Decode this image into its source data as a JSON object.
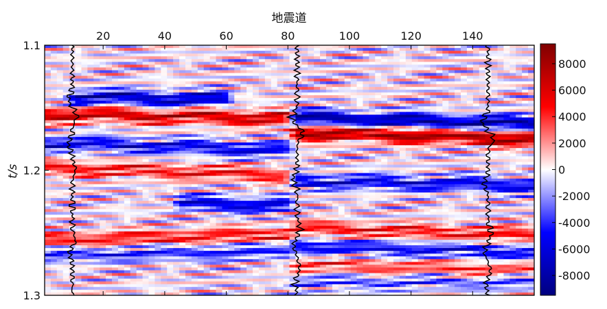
{
  "chart_data": {
    "type": "heatmap",
    "title": "",
    "xlabel": "地震道",
    "ylabel": "t/s",
    "x_axis_position": "top",
    "xlim": [
      1,
      160
    ],
    "ylim": [
      1.1,
      1.3
    ],
    "y_reversed": true,
    "x_ticks": [
      20,
      40,
      60,
      80,
      100,
      120,
      140
    ],
    "x_tick_labels": [
      "20",
      "40",
      "60",
      "80",
      "100",
      "120",
      "140"
    ],
    "y_ticks": [
      1.1,
      1.2,
      1.3
    ],
    "y_tick_labels": [
      "1.1",
      "1.2",
      "1.3"
    ],
    "colorbar": {
      "position": "right",
      "range": [
        -9500,
        9500
      ],
      "ticks": [
        8000,
        6000,
        4000,
        2000,
        0,
        -2000,
        -4000,
        -6000,
        -8000
      ],
      "tick_labels": [
        "8000",
        "6000",
        "4000",
        "2000",
        "0",
        "-2000",
        "-4000",
        "-6000",
        "-8000"
      ],
      "colormap": [
        "#00007f",
        "#0000ff",
        "#ffffff",
        "#ff0000",
        "#7f0000"
      ]
    },
    "events": [
      {
        "name": "red-a",
        "t_left": 1.155,
        "t_right": 1.162,
        "amplitude": 6500,
        "x_start": 1,
        "x_end": 80
      },
      {
        "name": "blue-a",
        "t_left": 1.141,
        "t_right": 1.148,
        "amplitude": -7000,
        "x_start": 10,
        "x_end": 60
      },
      {
        "name": "blue-b",
        "t_left": 1.178,
        "t_right": 1.19,
        "amplitude": -5500,
        "x_start": 1,
        "x_end": 80
      },
      {
        "name": "red-b",
        "t_left": 1.198,
        "t_right": 1.21,
        "amplitude": 4500,
        "x_start": 1,
        "x_end": 80
      },
      {
        "name": "blue-c",
        "t_left": 1.225,
        "t_right": 1.231,
        "amplitude": -6000,
        "x_start": 45,
        "x_end": 80
      },
      {
        "name": "red-c",
        "t_left": 1.256,
        "t_right": 1.246,
        "amplitude": 4500,
        "x_start": 1,
        "x_end": 80
      },
      {
        "name": "blue-d",
        "t_left": 1.268,
        "t_right": 1.262,
        "amplitude": -4000,
        "x_start": 1,
        "x_end": 80
      },
      {
        "name": "blue-main",
        "t_left": 1.153,
        "t_right": 1.163,
        "amplitude": -8000,
        "x_start": 82,
        "x_end": 160
      },
      {
        "name": "red-main",
        "t_left": 1.164,
        "t_right": 1.175,
        "amplitude": 8000,
        "x_start": 82,
        "x_end": 160
      },
      {
        "name": "blue-mid",
        "t_left": 1.205,
        "t_right": 1.212,
        "amplitude": -5500,
        "x_start": 82,
        "x_end": 160
      },
      {
        "name": "red-low",
        "t_left": 1.24,
        "t_right": 1.252,
        "amplitude": 4500,
        "x_start": 82,
        "x_end": 160
      },
      {
        "name": "blue-low",
        "t_left": 1.255,
        "t_right": 1.266,
        "amplitude": -5000,
        "x_start": 82,
        "x_end": 160
      },
      {
        "name": "red-deep",
        "t_left": 1.272,
        "t_right": 1.28,
        "amplitude": 3500,
        "x_start": 82,
        "x_end": 160
      },
      {
        "name": "blue-deep",
        "t_left": 1.288,
        "t_right": 1.29,
        "amplitude": -3000,
        "x_start": 82,
        "x_end": 160
      }
    ],
    "overlay_traces": [
      {
        "name": "trace-near-10",
        "x_center": 10
      },
      {
        "name": "trace-near-83",
        "x_center": 83
      },
      {
        "name": "trace-near-145",
        "x_center": 145
      }
    ]
  }
}
